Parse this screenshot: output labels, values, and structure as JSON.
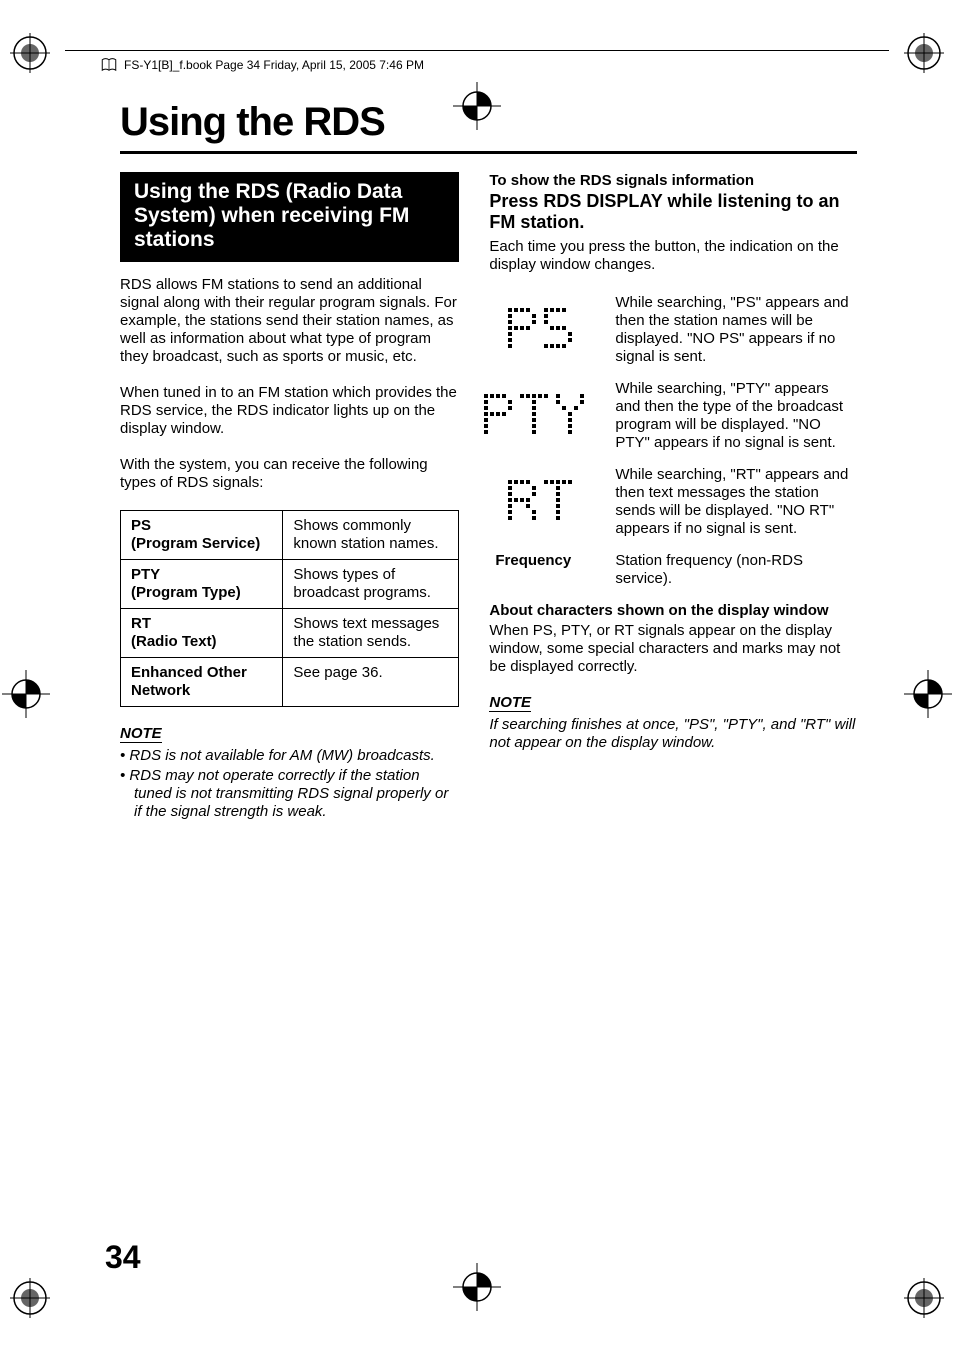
{
  "running_header": "FS-Y1[B]_f.book  Page 34  Friday, April 15, 2005  7:46 PM",
  "page_title": "Using the RDS",
  "section_heading": "Using the RDS (Radio Data System) when receiving FM stations",
  "intro_p1": "RDS allows FM stations to send an additional signal along with their regular program signals. For example, the stations send their station names, as well as information about what type of program they broadcast, such as sports or music, etc.",
  "intro_p2": "When tuned in to an FM station which provides the RDS service, the RDS indicator lights up on the display window.",
  "intro_p3": "With the system, you can receive the following types of RDS signals:",
  "rds_table": {
    "rows": [
      {
        "label_bold": "PS",
        "label_sub": "(Program Service)",
        "desc": "Shows commonly known station names."
      },
      {
        "label_bold": "PTY",
        "label_sub": "(Program Type)",
        "desc": "Shows types of broadcast programs."
      },
      {
        "label_bold": "RT",
        "label_sub": "(Radio Text)",
        "desc": "Shows text messages the station sends."
      },
      {
        "label_bold": "Enhanced Other Network",
        "label_sub": "",
        "desc": "See page 36."
      }
    ]
  },
  "note_label": "NOTE",
  "left_notes": [
    "RDS is not available for AM (MW) broadcasts.",
    "RDS may not operate correctly if the station tuned is not transmitting RDS signal properly or if the signal strength is weak."
  ],
  "right_sub_bold": "To show the RDS signals information",
  "right_h3": "Press RDS DISPLAY while listening to an FM station.",
  "right_p": "Each time you press the button, the indication on the display window changes.",
  "display_items": [
    {
      "icon": "PS",
      "desc": "While searching, \"PS\" appears and then the station names will be displayed. \"NO PS\" appears if no signal is sent."
    },
    {
      "icon": "PTY",
      "desc": "While searching, \"PTY\" appears and then the type of the broadcast program will be displayed. \"NO PTY\" appears if no signal is sent."
    },
    {
      "icon": "RT",
      "desc": "While searching, \"RT\" appears and then text messages the station sends will be displayed. \"NO RT\" appears if no signal is sent."
    },
    {
      "icon": "Frequency",
      "desc": "Station frequency (non-RDS service)."
    }
  ],
  "about_heading": "About characters shown on the display window",
  "about_p": "When PS, PTY, or RT signals appear on the display window, some special characters and marks may not be displayed correctly.",
  "right_note": "If searching finishes at once, \"PS\", \"PTY\", and \"RT\" will not appear on the display window.",
  "page_number": "34",
  "dot_matrix": {
    "PS": {
      "cols": 13,
      "pattern": [
        "11110.0.11110",
        "10001.0.10000",
        "10001.0.10000",
        "11110.0.01110",
        "10000.0.00001",
        "10000.0.00001",
        "10000.0.11110"
      ]
    },
    "PTY": {
      "cols": 21,
      "pattern": [
        "11110.0.11111.0.10001",
        "10001.0.00100.0.10001",
        "10001.0.00100.0.01010",
        "11110.0.00100.0.00100",
        "10000.0.00100.0.00100",
        "10000.0.00100.0.00100",
        "10000.0.00100.0.00100"
      ]
    },
    "RT": {
      "cols": 13,
      "pattern": [
        "11110.0.11111",
        "10001.0.00100",
        "10001.0.00100",
        "11110.0.00100",
        "10010.0.00100",
        "10001.0.00100",
        "10001.0.00100"
      ]
    }
  }
}
